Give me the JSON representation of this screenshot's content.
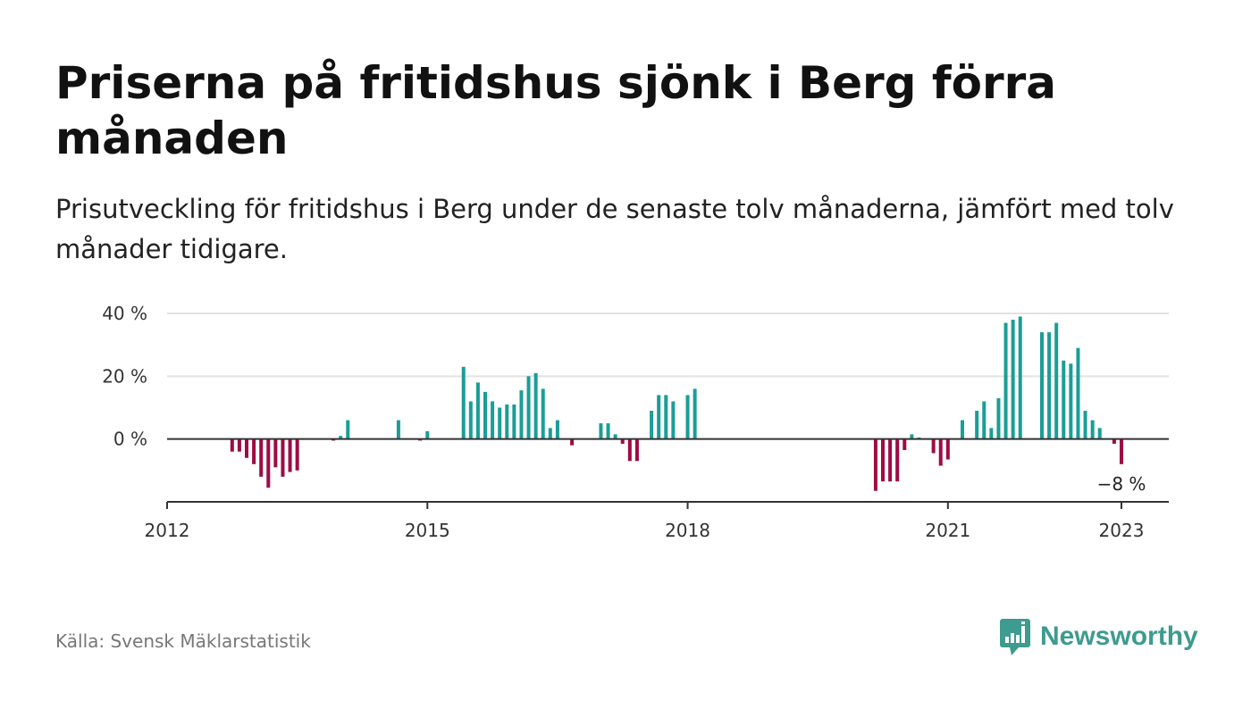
{
  "title": "Priserna på fritidshus sjönk i Berg förra månaden",
  "subtitle": "Prisutveckling för fritidshus i Berg under de senaste tolv månaderna, jämfört med tolv månader tidigare.",
  "source": "Källa: Svensk Mäklarstatistik",
  "brand": {
    "name": "Newsworthy",
    "logo_icon": "newsworthy-chart-bubble-icon",
    "color": "#3d9b8f"
  },
  "colors": {
    "positive": "#1a9e96",
    "negative": "#9e0b45",
    "grid": "#e2e2e2",
    "axis": "#333333"
  },
  "chart_data": {
    "type": "bar",
    "x_unit": "month",
    "y_unit": "%",
    "ylim": [
      -20,
      40
    ],
    "yticks": [
      {
        "value": 40,
        "label": "40 %"
      },
      {
        "value": 20,
        "label": "20 %"
      },
      {
        "value": 0,
        "label": "0 %"
      }
    ],
    "xlim": [
      "2012-01",
      "2023-06"
    ],
    "xticks": [
      {
        "date": "2012-01",
        "label": "2012"
      },
      {
        "date": "2015-01",
        "label": "2015"
      },
      {
        "date": "2018-01",
        "label": "2018"
      },
      {
        "date": "2021-01",
        "label": "2021"
      },
      {
        "date": "2023-01",
        "label": "2023"
      }
    ],
    "grid": true,
    "annotation": {
      "date": "2023-01",
      "value": -8,
      "label": "−8 %"
    },
    "bars": [
      {
        "date": "2012-10",
        "value": -4
      },
      {
        "date": "2012-11",
        "value": -4
      },
      {
        "date": "2012-12",
        "value": -6
      },
      {
        "date": "2013-01",
        "value": -8
      },
      {
        "date": "2013-02",
        "value": -12
      },
      {
        "date": "2013-03",
        "value": -15.5
      },
      {
        "date": "2013-04",
        "value": -9
      },
      {
        "date": "2013-05",
        "value": -12
      },
      {
        "date": "2013-06",
        "value": -10.5
      },
      {
        "date": "2013-07",
        "value": -10
      },
      {
        "date": "2013-12",
        "value": -0.5
      },
      {
        "date": "2014-01",
        "value": 1
      },
      {
        "date": "2014-02",
        "value": 6
      },
      {
        "date": "2014-09",
        "value": 6
      },
      {
        "date": "2014-12",
        "value": -0.5
      },
      {
        "date": "2015-01",
        "value": 2.5
      },
      {
        "date": "2015-06",
        "value": 23
      },
      {
        "date": "2015-07",
        "value": 12
      },
      {
        "date": "2015-08",
        "value": 18
      },
      {
        "date": "2015-09",
        "value": 15
      },
      {
        "date": "2015-10",
        "value": 12
      },
      {
        "date": "2015-11",
        "value": 10
      },
      {
        "date": "2015-12",
        "value": 11
      },
      {
        "date": "2016-01",
        "value": 11
      },
      {
        "date": "2016-02",
        "value": 15.5
      },
      {
        "date": "2016-03",
        "value": 20
      },
      {
        "date": "2016-04",
        "value": 21
      },
      {
        "date": "2016-05",
        "value": 16
      },
      {
        "date": "2016-06",
        "value": 3.5
      },
      {
        "date": "2016-07",
        "value": 6
      },
      {
        "date": "2016-09",
        "value": -2
      },
      {
        "date": "2017-01",
        "value": 5
      },
      {
        "date": "2017-02",
        "value": 5
      },
      {
        "date": "2017-03",
        "value": 1.5
      },
      {
        "date": "2017-04",
        "value": -1.5
      },
      {
        "date": "2017-05",
        "value": -7
      },
      {
        "date": "2017-06",
        "value": -7
      },
      {
        "date": "2017-08",
        "value": 9
      },
      {
        "date": "2017-09",
        "value": 14
      },
      {
        "date": "2017-10",
        "value": 14
      },
      {
        "date": "2017-11",
        "value": 12
      },
      {
        "date": "2018-01",
        "value": 14
      },
      {
        "date": "2018-02",
        "value": 16
      },
      {
        "date": "2020-03",
        "value": -16.5
      },
      {
        "date": "2020-04",
        "value": -13.5
      },
      {
        "date": "2020-05",
        "value": -13.5
      },
      {
        "date": "2020-06",
        "value": -13.5
      },
      {
        "date": "2020-07",
        "value": -3.5
      },
      {
        "date": "2020-08",
        "value": 1.5
      },
      {
        "date": "2020-09",
        "value": 0.5
      },
      {
        "date": "2020-11",
        "value": -4.5
      },
      {
        "date": "2020-12",
        "value": -8.5
      },
      {
        "date": "2021-01",
        "value": -6.5
      },
      {
        "date": "2021-03",
        "value": 6
      },
      {
        "date": "2021-05",
        "value": 9
      },
      {
        "date": "2021-06",
        "value": 12
      },
      {
        "date": "2021-07",
        "value": 3.5
      },
      {
        "date": "2021-08",
        "value": 13
      },
      {
        "date": "2021-09",
        "value": 37
      },
      {
        "date": "2021-10",
        "value": 38
      },
      {
        "date": "2021-11",
        "value": 39
      },
      {
        "date": "2022-02",
        "value": 34
      },
      {
        "date": "2022-03",
        "value": 34
      },
      {
        "date": "2022-04",
        "value": 37
      },
      {
        "date": "2022-05",
        "value": 25
      },
      {
        "date": "2022-06",
        "value": 24
      },
      {
        "date": "2022-07",
        "value": 29
      },
      {
        "date": "2022-08",
        "value": 9
      },
      {
        "date": "2022-09",
        "value": 6
      },
      {
        "date": "2022-10",
        "value": 3.5
      },
      {
        "date": "2022-12",
        "value": -1.5
      },
      {
        "date": "2023-01",
        "value": -8
      }
    ]
  }
}
